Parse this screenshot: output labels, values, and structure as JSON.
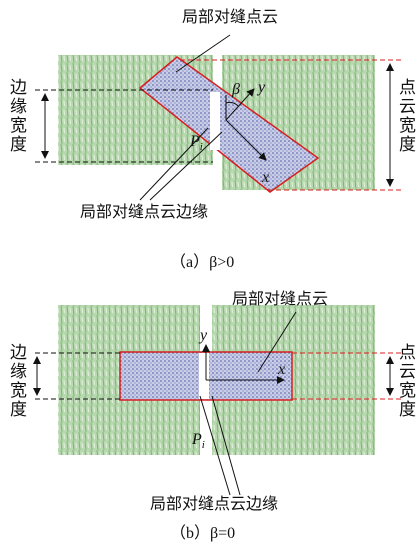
{
  "panels": [
    {
      "top_label": "局部对缝点云",
      "left_label": "边缘宽度",
      "right_label": "点云宽度",
      "angle": "β",
      "y_axis": "y",
      "x_axis": "x",
      "point": "P",
      "point_subscript": "i",
      "edge_label": "局部对缝点云边缘",
      "caption": "（a）β>0"
    },
    {
      "top_label": "局部对缝点云",
      "left_label": "边缘宽度",
      "right_label": "点云宽度",
      "y_axis": "y",
      "x_axis": "x",
      "point": "P",
      "point_subscript": "i",
      "edge_label": "局部对缝点云边缘",
      "caption": "（b）β=0"
    }
  ]
}
